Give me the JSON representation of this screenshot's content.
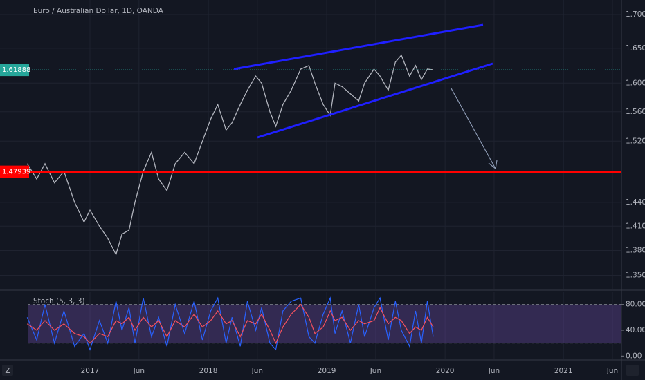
{
  "chart_data": [
    {
      "type": "line",
      "title": "Euro / Australian Dollar, 1D, OANDA",
      "color": "#b2b5be",
      "log_scale": true,
      "grid": true,
      "x": [
        2016.47,
        2016.55,
        2016.62,
        2016.7,
        2016.78,
        2016.87,
        2016.95,
        2017.0,
        2017.08,
        2017.15,
        2017.22,
        2017.27,
        2017.33,
        2017.38,
        2017.45,
        2017.52,
        2017.58,
        2017.65,
        2017.72,
        2017.8,
        2017.88,
        2017.95,
        2018.02,
        2018.08,
        2018.15,
        2018.2,
        2018.27,
        2018.33,
        2018.4,
        2018.45,
        2018.52,
        2018.57,
        2018.63,
        2018.7,
        2018.78,
        2018.85,
        2018.9,
        2018.97,
        2019.03,
        2019.07,
        2019.13,
        2019.2,
        2019.27,
        2019.32,
        2019.4,
        2019.45,
        2019.52,
        2019.58,
        2019.63,
        2019.7,
        2019.75,
        2019.8,
        2019.85,
        2019.9
      ],
      "values": [
        1.49,
        1.47,
        1.49,
        1.465,
        1.48,
        1.44,
        1.415,
        1.43,
        1.41,
        1.395,
        1.375,
        1.4,
        1.405,
        1.44,
        1.48,
        1.505,
        1.47,
        1.455,
        1.49,
        1.505,
        1.49,
        1.52,
        1.55,
        1.57,
        1.535,
        1.545,
        1.57,
        1.59,
        1.61,
        1.6,
        1.56,
        1.54,
        1.57,
        1.59,
        1.62,
        1.625,
        1.6,
        1.57,
        1.555,
        1.6,
        1.595,
        1.585,
        1.575,
        1.6,
        1.62,
        1.61,
        1.59,
        1.63,
        1.64,
        1.61,
        1.625,
        1.605,
        1.62,
        1.619
      ],
      "xlim": [
        2016.24,
        2021.49
      ],
      "xticks": [
        2017,
        {
          "value": 2017.414,
          "label": "Jun"
        },
        2018,
        {
          "value": 2018.414,
          "label": "Jun"
        },
        2019,
        {
          "value": 2019.414,
          "label": "Jun"
        },
        2020,
        {
          "value": 2020.414,
          "label": "Jun"
        },
        2021,
        {
          "value": 2021.414,
          "label": "Jun"
        }
      ],
      "ylim": [
        1.334,
        1.722
      ],
      "yticks": [
        {
          "value": 1.35,
          "label": "1.35000"
        },
        {
          "value": 1.38,
          "label": "1.38000"
        },
        {
          "value": 1.41,
          "label": "1.41000"
        },
        {
          "value": 1.44,
          "label": "1.44000"
        },
        {
          "value": 1.52,
          "label": "1.52000"
        },
        {
          "value": 1.56,
          "label": "1.56000"
        },
        {
          "value": 1.6,
          "label": "1.60000"
        },
        {
          "value": 1.65,
          "label": "1.65000"
        },
        {
          "value": 1.7,
          "label": "1.70000"
        }
      ],
      "price_lines": [
        {
          "value": 1.61888,
          "color": "#26a69a"
        },
        {
          "value": 1.47939,
          "color": "#ff0000"
        }
      ]
    },
    {
      "type": "line",
      "title": "Stoch (5, 3, 3)",
      "x": [
        2016.47,
        2016.55,
        2016.62,
        2016.7,
        2016.78,
        2016.87,
        2016.95,
        2017.0,
        2017.08,
        2017.15,
        2017.22,
        2017.27,
        2017.33,
        2017.38,
        2017.45,
        2017.52,
        2017.58,
        2017.65,
        2017.72,
        2017.8,
        2017.88,
        2017.95,
        2018.02,
        2018.08,
        2018.15,
        2018.2,
        2018.27,
        2018.33,
        2018.4,
        2018.45,
        2018.52,
        2018.57,
        2018.63,
        2018.7,
        2018.78,
        2018.85,
        2018.9,
        2018.97,
        2019.03,
        2019.07,
        2019.13,
        2019.2,
        2019.27,
        2019.32,
        2019.4,
        2019.45,
        2019.52,
        2019.58,
        2019.63,
        2019.7,
        2019.75,
        2019.8,
        2019.85,
        2019.9
      ],
      "series": [
        {
          "color": "#2962ff",
          "values": [
            60,
            25,
            80,
            20,
            70,
            15,
            35,
            10,
            55,
            20,
            85,
            40,
            75,
            20,
            90,
            30,
            60,
            15,
            80,
            35,
            85,
            25,
            70,
            90,
            20,
            60,
            15,
            85,
            40,
            75,
            20,
            10,
            70,
            85,
            90,
            30,
            20,
            65,
            90,
            35,
            70,
            20,
            80,
            30,
            75,
            90,
            25,
            85,
            40,
            15,
            70,
            20,
            85,
            30
          ]
        },
        {
          "color": "#f7525f",
          "values": [
            50,
            40,
            55,
            40,
            50,
            35,
            30,
            20,
            35,
            30,
            55,
            50,
            60,
            40,
            60,
            45,
            55,
            30,
            55,
            45,
            65,
            45,
            55,
            70,
            50,
            55,
            30,
            55,
            50,
            65,
            40,
            20,
            45,
            65,
            80,
            60,
            35,
            45,
            70,
            55,
            60,
            40,
            55,
            50,
            55,
            75,
            50,
            60,
            55,
            35,
            45,
            40,
            60,
            45
          ]
        }
      ],
      "ylim": [
        -5,
        100
      ],
      "yticks": [
        {
          "value": 0,
          "label": "0.00"
        },
        {
          "value": 40,
          "label": "40.00"
        },
        {
          "value": 80,
          "label": "80.00"
        }
      ],
      "band": [
        20,
        80
      ]
    }
  ]
}
